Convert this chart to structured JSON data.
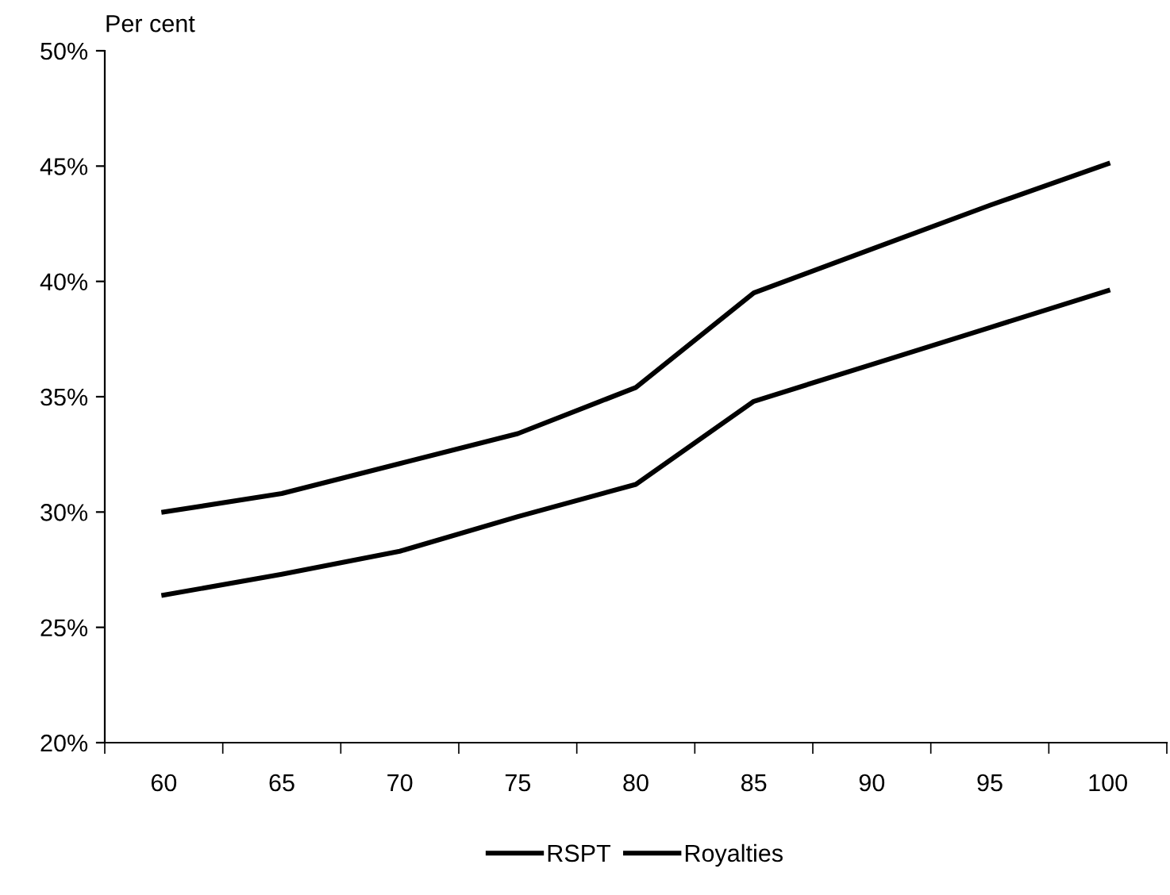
{
  "chart_data": {
    "type": "line",
    "ylabel": "Per cent",
    "categories": [
      "60",
      "65",
      "70",
      "75",
      "80",
      "85",
      "90",
      "95",
      "100"
    ],
    "series": [
      {
        "name": "RSPT",
        "color": "#000000",
        "values": [
          26.4,
          27.3,
          28.3,
          29.8,
          31.2,
          34.8,
          36.4,
          38.0,
          39.6
        ]
      },
      {
        "name": "Royalties",
        "color": "#000000",
        "values": [
          30.0,
          30.8,
          32.1,
          33.4,
          35.4,
          39.5,
          41.4,
          43.3,
          45.1
        ]
      }
    ],
    "ylim": [
      20,
      50
    ],
    "yticks": [
      {
        "value": 20,
        "label": "20%"
      },
      {
        "value": 25,
        "label": "25%"
      },
      {
        "value": 30,
        "label": "30%"
      },
      {
        "value": 35,
        "label": "35%"
      },
      {
        "value": 40,
        "label": "40%"
      },
      {
        "value": 45,
        "label": "45%"
      },
      {
        "value": 50,
        "label": "50%"
      }
    ],
    "grid": false,
    "legend": "bottom",
    "marker": "none",
    "line_style": "solid"
  }
}
